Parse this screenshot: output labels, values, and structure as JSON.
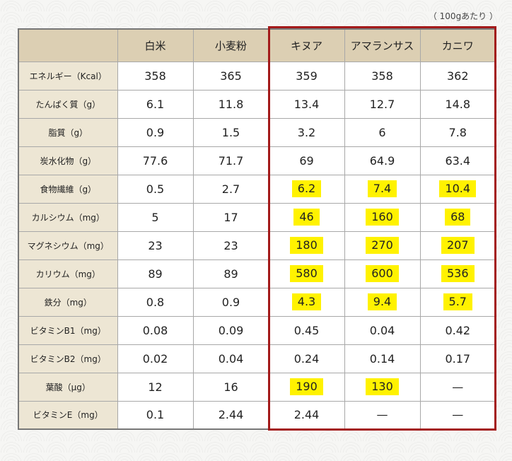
{
  "unit_note": "（ 100gあたり ）",
  "columns": [
    "白米",
    "小麦粉",
    "キヌア",
    "アマランサス",
    "カニワ"
  ],
  "highlight_color": "#fff200",
  "frame_color": "#a31a1a",
  "rows": [
    {
      "label": "エネルギー（Kcal）",
      "values": [
        "358",
        "365",
        "359",
        "358",
        "362"
      ],
      "highlight": [
        false,
        false,
        false,
        false,
        false
      ]
    },
    {
      "label": "たんぱく質（g）",
      "values": [
        "6.1",
        "11.8",
        "13.4",
        "12.7",
        "14.8"
      ],
      "highlight": [
        false,
        false,
        false,
        false,
        false
      ]
    },
    {
      "label": "脂質（g）",
      "values": [
        "0.9",
        "1.5",
        "3.2",
        "6",
        "7.8"
      ],
      "highlight": [
        false,
        false,
        false,
        false,
        false
      ]
    },
    {
      "label": "炭水化物（g）",
      "values": [
        "77.6",
        "71.7",
        "69",
        "64.9",
        "63.4"
      ],
      "highlight": [
        false,
        false,
        false,
        false,
        false
      ]
    },
    {
      "label": "食物繊維（g）",
      "values": [
        "0.5",
        "2.7",
        "6.2",
        "7.4",
        "10.4"
      ],
      "highlight": [
        false,
        false,
        true,
        true,
        true
      ]
    },
    {
      "label": "カルシウム（mg）",
      "values": [
        "5",
        "17",
        "46",
        "160",
        "68"
      ],
      "highlight": [
        false,
        false,
        true,
        true,
        true
      ]
    },
    {
      "label": "マグネシウム（mg）",
      "values": [
        "23",
        "23",
        "180",
        "270",
        "207"
      ],
      "highlight": [
        false,
        false,
        true,
        true,
        true
      ]
    },
    {
      "label": "カリウム（mg）",
      "values": [
        "89",
        "89",
        "580",
        "600",
        "536"
      ],
      "highlight": [
        false,
        false,
        true,
        true,
        true
      ]
    },
    {
      "label": "鉄分（mg）",
      "values": [
        "0.8",
        "0.9",
        "4.3",
        "9.4",
        "5.7"
      ],
      "highlight": [
        false,
        false,
        true,
        true,
        true
      ]
    },
    {
      "label": "ビタミンB1（mg）",
      "values": [
        "0.08",
        "0.09",
        "0.45",
        "0.04",
        "0.42"
      ],
      "highlight": [
        false,
        false,
        false,
        false,
        false
      ]
    },
    {
      "label": "ビタミンB2（mg）",
      "values": [
        "0.02",
        "0.04",
        "0.24",
        "0.14",
        "0.17"
      ],
      "highlight": [
        false,
        false,
        false,
        false,
        false
      ]
    },
    {
      "label": "葉酸（μg）",
      "values": [
        "12",
        "16",
        "190",
        "130",
        "—"
      ],
      "highlight": [
        false,
        false,
        true,
        true,
        false
      ]
    },
    {
      "label": "ビタミンE（mg）",
      "values": [
        "0.1",
        "2.44",
        "2.44",
        "—",
        "—"
      ],
      "highlight": [
        false,
        false,
        false,
        false,
        false
      ]
    }
  ]
}
